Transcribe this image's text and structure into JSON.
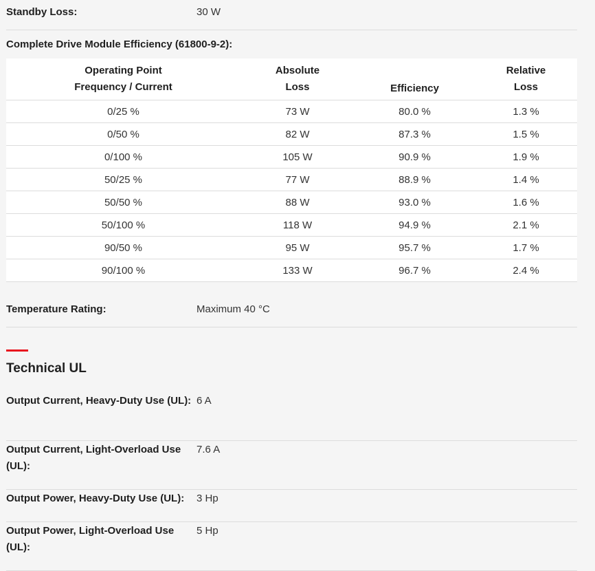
{
  "standby": {
    "label": "Standby Loss:",
    "value": "30 W"
  },
  "efficiency": {
    "title": "Complete Drive Module Efficiency (61800-9-2):",
    "headers": {
      "col1_line1": "Operating Point",
      "col1_line2": "Frequency / Current",
      "col2_line1": "Absolute",
      "col2_line2": "Loss",
      "col3": "Efficiency",
      "col4_line1": "Relative",
      "col4_line2": "Loss"
    },
    "rows": [
      {
        "point": "0/25 %",
        "loss": "73 W",
        "eff": "80.0 %",
        "rel": "1.3 %"
      },
      {
        "point": "0/50 %",
        "loss": "82 W",
        "eff": "87.3 %",
        "rel": "1.5 %"
      },
      {
        "point": "0/100 %",
        "loss": "105 W",
        "eff": "90.9 %",
        "rel": "1.9 %"
      },
      {
        "point": "50/25 %",
        "loss": "77 W",
        "eff": "88.9 %",
        "rel": "1.4 %"
      },
      {
        "point": "50/50 %",
        "loss": "88 W",
        "eff": "93.0 %",
        "rel": "1.6 %"
      },
      {
        "point": "50/100 %",
        "loss": "118 W",
        "eff": "94.9 %",
        "rel": "2.1 %"
      },
      {
        "point": "90/50 %",
        "loss": "95 W",
        "eff": "95.7 %",
        "rel": "1.7 %"
      },
      {
        "point": "90/100 %",
        "loss": "133 W",
        "eff": "96.7 %",
        "rel": "2.4 %"
      }
    ]
  },
  "temperature": {
    "label": "Temperature Rating:",
    "value": "Maximum 40 °C"
  },
  "section": {
    "title": "Technical UL",
    "accent_color": "#e8141e"
  },
  "ul": [
    {
      "label": "Output Current, Heavy-Duty Use (UL):",
      "value": "6 A"
    },
    {
      "label": "Output Current, Light-Overload Use (UL):",
      "value": "7.6 A"
    },
    {
      "label": "Output Power, Heavy-Duty Use (UL):",
      "value": "3 Hp"
    },
    {
      "label": "Output Power, Light-Overload Use (UL):",
      "value": "5 Hp"
    }
  ]
}
